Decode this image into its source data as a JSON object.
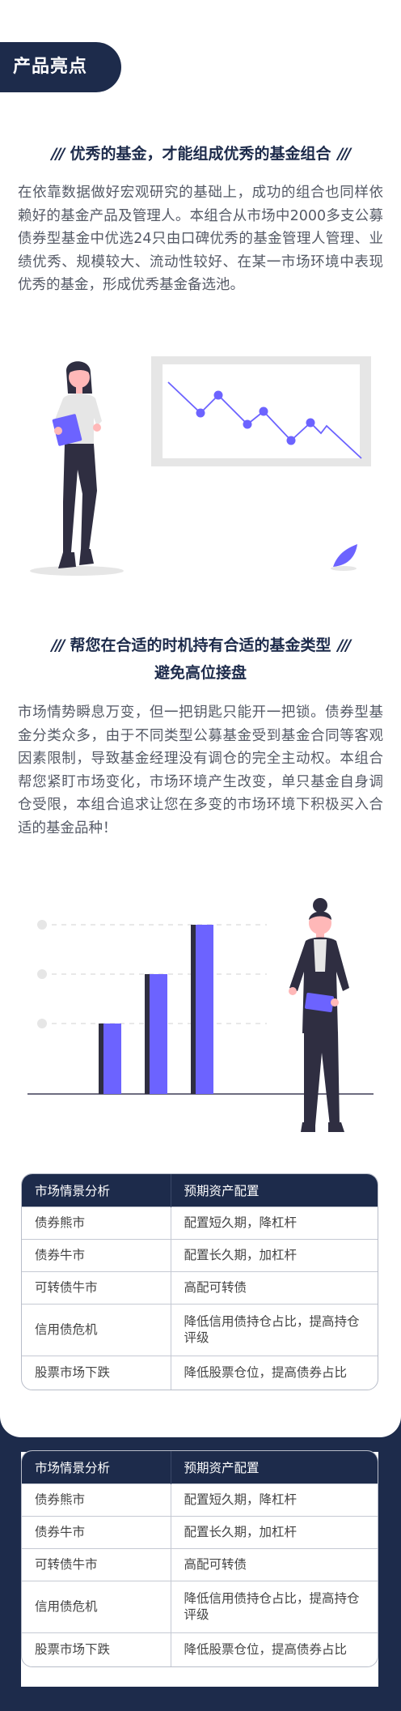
{
  "section_tag": "产品亮点",
  "block1": {
    "slashes": "///",
    "heading": "优秀的基金，才能组成优秀的基金组合",
    "paragraph": "在依靠数据做好宏观研究的基础上，成功的组合也同样依赖好的基金产品及管理人。本组合从市场中2000多支公募债券型基金中优选24只由口碑优秀的基金管理人管理、业绩优秀、规模较大、流动性较好、在某一市场环境中表现优秀的基金，形成优秀基金备选池。"
  },
  "block2": {
    "slashes": "///",
    "heading_line1": "帮您在合适的时机持有合适的基金类型",
    "heading_line2": "避免高位接盘",
    "paragraph": "市场情势瞬息万变，但一把钥匙只能开一把锁。债券型基金分类众多，由于不同类型公募基金受到基金合同等客观因素限制，导致基金经理没有调仓的完全主动权。本组合帮您紧盯市场变化，市场环境产生改变，单只基金自身调仓受限，本组合追求让您在多变的市场环境下积极买入合适的基金品种！"
  },
  "colors": {
    "navy": "#1d2b4b",
    "accent": "#6c63ff",
    "gray": "#e6e6e6"
  },
  "table": {
    "headers": [
      "市场情景分析",
      "预期资产配置"
    ],
    "rows": [
      [
        "债券熊市",
        "配置短久期，降杠杆"
      ],
      [
        "债券牛市",
        "配置长久期，加杠杆"
      ],
      [
        "可转债牛市",
        "高配可转债"
      ],
      [
        "信用债危机",
        "降低信用债持仓占比，提高持仓评级"
      ],
      [
        "股票市场下跌",
        "降低股票仓位，提高债券占比"
      ]
    ]
  }
}
